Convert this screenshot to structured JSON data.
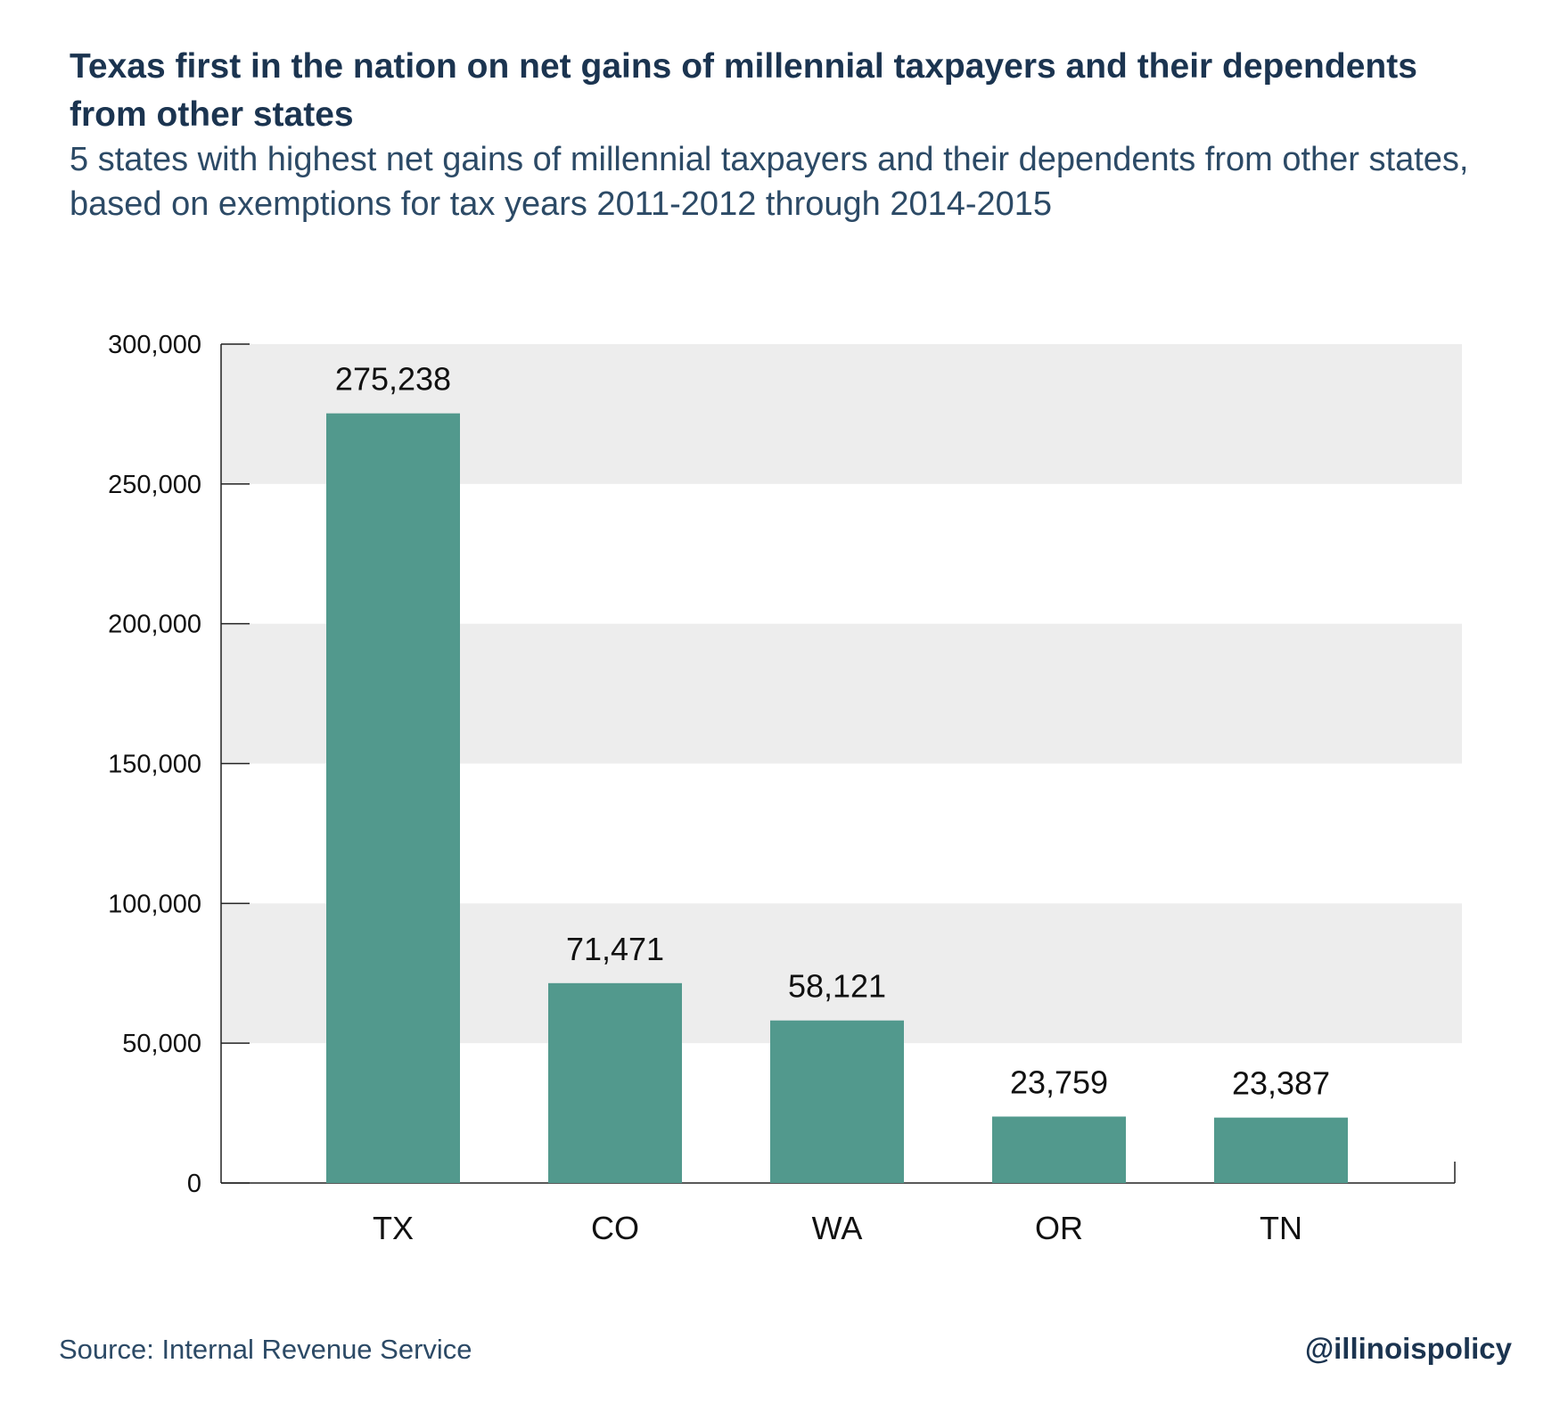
{
  "chart_data": {
    "type": "bar",
    "title": "Texas first in the nation on net gains of millennial taxpayers and their dependents from other states",
    "subtitle": "5 states with highest net gains of millennial taxpayers and their dependents from other states, based on exemptions for tax years 2011-2012 through 2014-2015",
    "categories": [
      "TX",
      "CO",
      "WA",
      "OR",
      "TN"
    ],
    "values": [
      275238,
      71471,
      58121,
      23759,
      23387
    ],
    "data_labels": [
      "275,238",
      "71,471",
      "58,121",
      "23,759",
      "23,387"
    ],
    "xlabel": "",
    "ylabel": "",
    "ylim": [
      0,
      300000
    ],
    "yticks": [
      0,
      50000,
      100000,
      150000,
      200000,
      250000,
      300000
    ],
    "ytick_labels": [
      "0",
      "50,000",
      "100,000",
      "150,000",
      "200,000",
      "250,000",
      "300,000"
    ],
    "grid": "alternating horizontal bands",
    "legend": "none",
    "colors": {
      "bar": "#52998d",
      "band": "#ededed",
      "title": "#1b3450",
      "text": "#2c4a66"
    }
  },
  "footer": {
    "source": "Source:  Internal Revenue Service",
    "handle": "@illinoispolicy"
  }
}
